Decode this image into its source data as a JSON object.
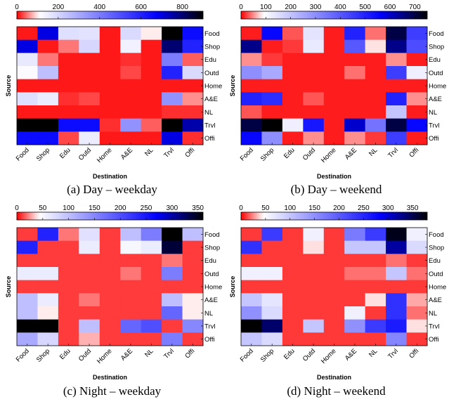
{
  "figure": {
    "captions": [
      "(a)  Day  –  weekday",
      "(b)  Day  –  weekend",
      "(c)  Night  –  weekday",
      "(d)  Night  –  weekend"
    ]
  },
  "colors": {
    "low": "#ff0000",
    "mid": "#ffffff",
    "high": "#0000ff",
    "top": "#000000"
  },
  "chart_data": [
    {
      "type": "heatmap",
      "xlabel": "Destination",
      "ylabel": "Source",
      "x_categories": [
        "Food",
        "Shop",
        "Edu",
        "Outd",
        "Home",
        "A&E",
        "NL",
        "Trvl",
        "Offi"
      ],
      "y_categories": [
        "Food",
        "Shop",
        "Edu",
        "Outd",
        "Home",
        "A&E",
        "NL",
        "Trvl",
        "Offi"
      ],
      "colorbar": {
        "min": 0,
        "max": 900,
        "ticks": [
          0,
          200,
          400,
          600,
          800
        ]
      },
      "values": [
        [
          10,
          700,
          180,
          170,
          10,
          190,
          100,
          900,
          650
        ],
        [
          700,
          10,
          50,
          200,
          10,
          140,
          10,
          800,
          600
        ],
        [
          160,
          50,
          10,
          10,
          10,
          20,
          10,
          400,
          40
        ],
        [
          120,
          250,
          10,
          10,
          10,
          30,
          10,
          600,
          190
        ],
        [
          10,
          10,
          10,
          10,
          10,
          10,
          10,
          10,
          10
        ],
        [
          180,
          150,
          20,
          30,
          10,
          10,
          10,
          350,
          60
        ],
        [
          10,
          10,
          10,
          10,
          10,
          10,
          10,
          20,
          20
        ],
        [
          900,
          900,
          650,
          650,
          20,
          350,
          40,
          900,
          750
        ],
        [
          650,
          650,
          30,
          150,
          10,
          10,
          10,
          700,
          20
        ]
      ]
    },
    {
      "type": "heatmap",
      "xlabel": "Destination",
      "ylabel": "Source",
      "x_categories": [
        "Food",
        "Shop",
        "Edu",
        "Outd",
        "Home",
        "A&E",
        "NL",
        "Trvl",
        "Offi"
      ],
      "y_categories": [
        "Food",
        "Shop",
        "Edu",
        "Outd",
        "Home",
        "A&E",
        "NL",
        "Trvl",
        "Offi"
      ],
      "colorbar": {
        "min": 0,
        "max": 750,
        "ticks": [
          0,
          100,
          200,
          300,
          400,
          500,
          600,
          700
        ]
      },
      "values": [
        [
          10,
          550,
          30,
          140,
          10,
          500,
          40,
          700,
          450
        ],
        [
          650,
          10,
          20,
          130,
          10,
          400,
          80,
          650,
          420
        ],
        [
          50,
          20,
          10,
          10,
          10,
          10,
          10,
          50,
          10
        ],
        [
          300,
          250,
          10,
          10,
          10,
          40,
          10,
          450,
          120
        ],
        [
          10,
          10,
          10,
          10,
          10,
          10,
          10,
          10,
          10
        ],
        [
          500,
          480,
          10,
          30,
          10,
          10,
          10,
          500,
          50
        ],
        [
          30,
          10,
          10,
          10,
          10,
          10,
          10,
          200,
          10
        ],
        [
          700,
          750,
          120,
          520,
          10,
          600,
          350,
          700,
          550
        ],
        [
          550,
          300,
          10,
          50,
          10,
          50,
          20,
          450,
          10
        ]
      ]
    },
    {
      "type": "heatmap",
      "xlabel": "Destination",
      "ylabel": "Source",
      "x_categories": [
        "Food",
        "Shop",
        "Edu",
        "Outd",
        "Home",
        "A&E",
        "NL",
        "Trvl",
        "Offi"
      ],
      "y_categories": [
        "Food",
        "Shop",
        "Edu",
        "Outd",
        "Home",
        "A&E",
        "NL",
        "Trvl",
        "Offi"
      ],
      "colorbar": {
        "min": 0,
        "max": 360,
        "ticks": [
          0,
          50,
          100,
          150,
          200,
          250,
          300,
          350
        ]
      },
      "values": [
        [
          10,
          240,
          20,
          70,
          10,
          100,
          160,
          360,
          100
        ],
        [
          240,
          10,
          10,
          60,
          10,
          50,
          60,
          340,
          10
        ],
        [
          10,
          10,
          10,
          10,
          10,
          10,
          10,
          20,
          10
        ],
        [
          60,
          60,
          10,
          10,
          10,
          20,
          10,
          160,
          10
        ],
        [
          10,
          10,
          10,
          10,
          10,
          10,
          10,
          10,
          10
        ],
        [
          100,
          60,
          10,
          20,
          10,
          10,
          10,
          100,
          40
        ],
        [
          100,
          40,
          10,
          10,
          10,
          10,
          10,
          180,
          40
        ],
        [
          360,
          360,
          10,
          100,
          10,
          180,
          200,
          10,
          150
        ],
        [
          120,
          80,
          10,
          30,
          10,
          10,
          10,
          160,
          10
        ]
      ]
    },
    {
      "type": "heatmap",
      "xlabel": "Destination",
      "ylabel": "Source",
      "x_categories": [
        "Food",
        "Shop",
        "Edu",
        "Outd",
        "Home",
        "A&E",
        "NL",
        "Trvl",
        "Offi"
      ],
      "y_categories": [
        "Food",
        "Shop",
        "Edu",
        "Outd",
        "Home",
        "A&E",
        "NL",
        "Trvl",
        "Offi"
      ],
      "colorbar": {
        "min": 0,
        "max": 380,
        "ticks": [
          0,
          50,
          100,
          150,
          200,
          250,
          300,
          350
        ]
      },
      "values": [
        [
          10,
          230,
          10,
          60,
          10,
          170,
          230,
          370,
          60
        ],
        [
          240,
          10,
          10,
          40,
          10,
          100,
          100,
          320,
          80
        ],
        [
          10,
          10,
          10,
          10,
          10,
          10,
          10,
          20,
          10
        ],
        [
          60,
          60,
          10,
          10,
          10,
          20,
          20,
          100,
          20
        ],
        [
          10,
          10,
          10,
          10,
          10,
          10,
          10,
          10,
          10
        ],
        [
          100,
          70,
          10,
          10,
          10,
          10,
          40,
          240,
          30
        ],
        [
          150,
          80,
          10,
          10,
          10,
          60,
          10,
          240,
          20
        ],
        [
          380,
          340,
          10,
          100,
          10,
          150,
          230,
          260,
          40
        ],
        [
          100,
          80,
          10,
          10,
          10,
          10,
          10,
          160,
          10
        ]
      ]
    }
  ]
}
